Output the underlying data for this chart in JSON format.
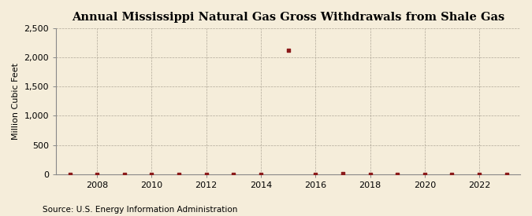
{
  "title": "Annual Mississippi Natural Gas Gross Withdrawals from Shale Gas",
  "ylabel": "Million Cubic Feet",
  "source": "Source: U.S. Energy Information Administration",
  "background_color": "#f5edda",
  "plot_background_color": "#f5edda",
  "xlim": [
    2006.5,
    2023.5
  ],
  "ylim": [
    0,
    2500
  ],
  "yticks": [
    0,
    500,
    1000,
    1500,
    2000,
    2500
  ],
  "ytick_labels": [
    "0",
    "500",
    "1,000",
    "1,500",
    "2,000",
    "2,500"
  ],
  "xticks": [
    2008,
    2010,
    2012,
    2014,
    2016,
    2018,
    2020,
    2022
  ],
  "data_years": [
    2007,
    2008,
    2009,
    2010,
    2011,
    2012,
    2013,
    2014,
    2015,
    2016,
    2017,
    2018,
    2019,
    2020,
    2021,
    2022,
    2023
  ],
  "data_values": [
    1,
    2,
    1,
    1,
    1,
    1,
    1,
    1,
    2117,
    2,
    5,
    1,
    1,
    1,
    1,
    1,
    1
  ],
  "marker_color": "#8b1a1a",
  "grid_color": "#b0a898",
  "title_fontsize": 10.5,
  "axis_label_fontsize": 8,
  "tick_fontsize": 8,
  "source_fontsize": 7.5
}
